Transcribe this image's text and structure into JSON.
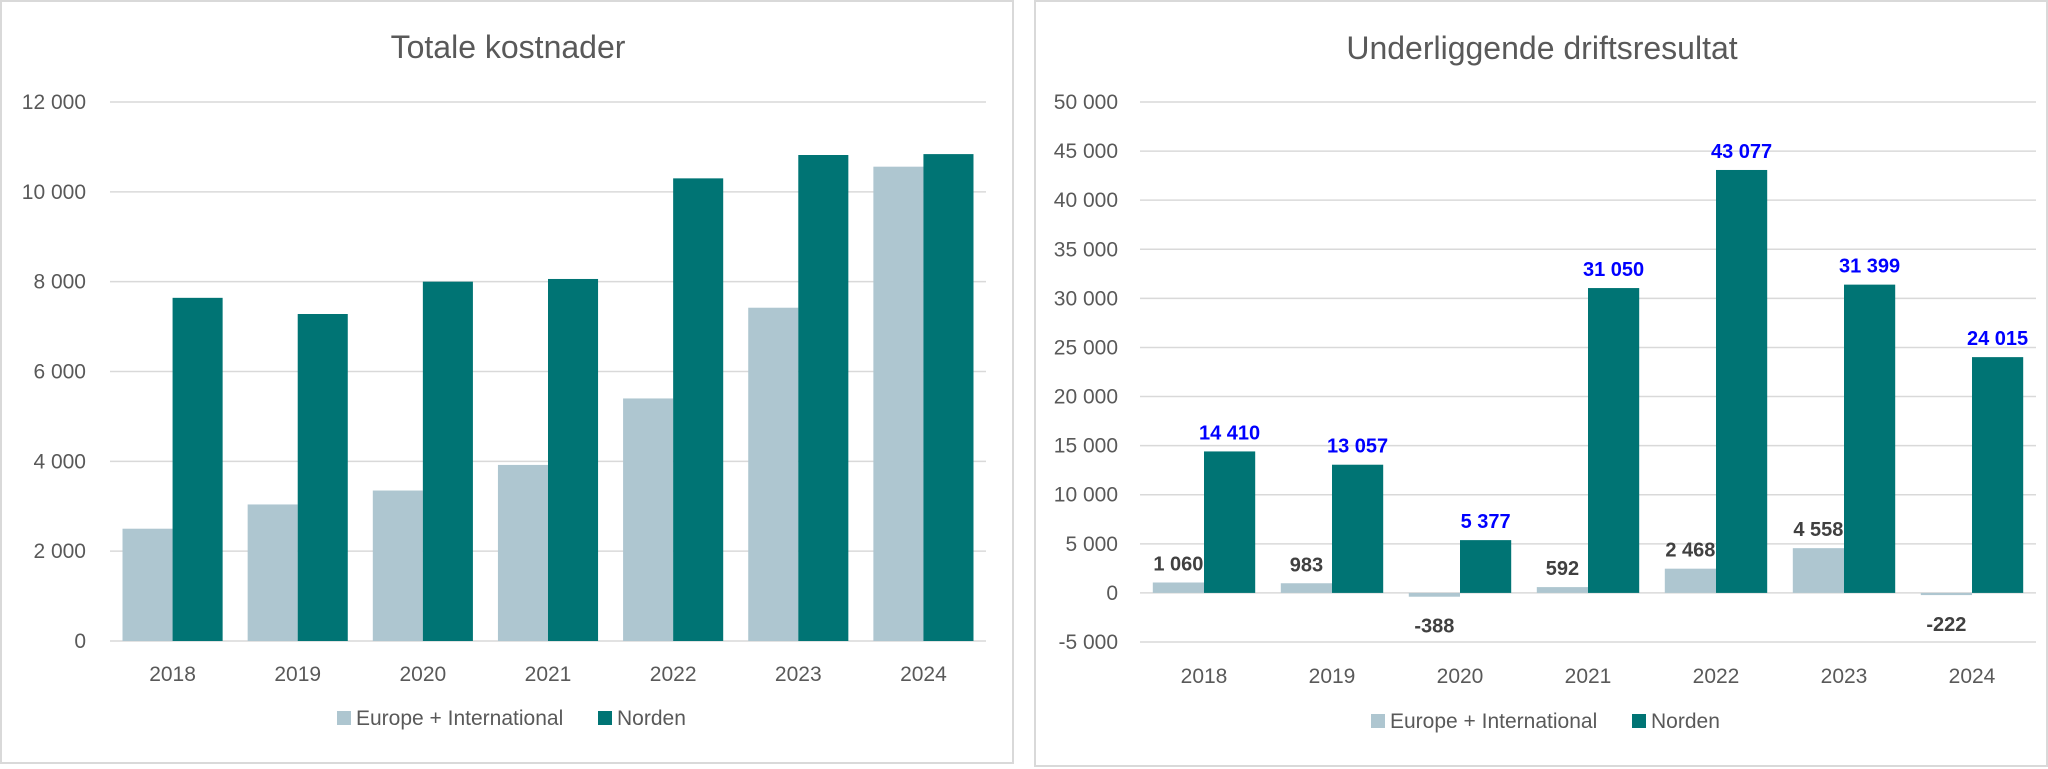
{
  "colors": {
    "europe": "#aec6d0",
    "norden": "#007474"
  },
  "chart_data": [
    {
      "type": "bar",
      "title": "Totale kostnader",
      "categories": [
        "2018",
        "2019",
        "2020",
        "2021",
        "2022",
        "2023",
        "2024"
      ],
      "yticks": [
        "0",
        "2 000",
        "4 000",
        "6 000",
        "8 000",
        "10 000",
        "12 000"
      ],
      "ylim": [
        0,
        12000
      ],
      "series": [
        {
          "name": "Europe + International",
          "values": [
            2500,
            3040,
            3350,
            3920,
            5400,
            7420,
            10560
          ]
        },
        {
          "name": "Norden",
          "values": [
            7640,
            7280,
            8000,
            8060,
            10300,
            10820,
            10840
          ]
        }
      ],
      "data_labels": false,
      "legend": "bottom",
      "grid": true
    },
    {
      "type": "bar",
      "title": "Underliggende driftsresultat",
      "categories": [
        "2018",
        "2019",
        "2020",
        "2021",
        "2022",
        "2023",
        "2024"
      ],
      "yticks": [
        "-5 000",
        "0",
        "5 000",
        "10 000",
        "15 000",
        "20 000",
        "25 000",
        "30 000",
        "35 000",
        "40 000",
        "45 000",
        "50 000"
      ],
      "ylim": [
        -5000,
        50000
      ],
      "series": [
        {
          "name": "Europe + International",
          "values": [
            1060,
            983,
            -388,
            592,
            2468,
            4558,
            -222
          ],
          "labels": [
            "1 060",
            "983",
            "-388",
            "592",
            "2 468",
            "4 558",
            "-222"
          ]
        },
        {
          "name": "Norden",
          "values": [
            14410,
            13057,
            5377,
            31050,
            43077,
            31399,
            24015
          ],
          "labels": [
            "14 410",
            "13 057",
            "5 377",
            "31 050",
            "43 077",
            "31 399",
            "24 015"
          ]
        }
      ],
      "data_labels": true,
      "legend": "bottom",
      "grid": true
    }
  ]
}
